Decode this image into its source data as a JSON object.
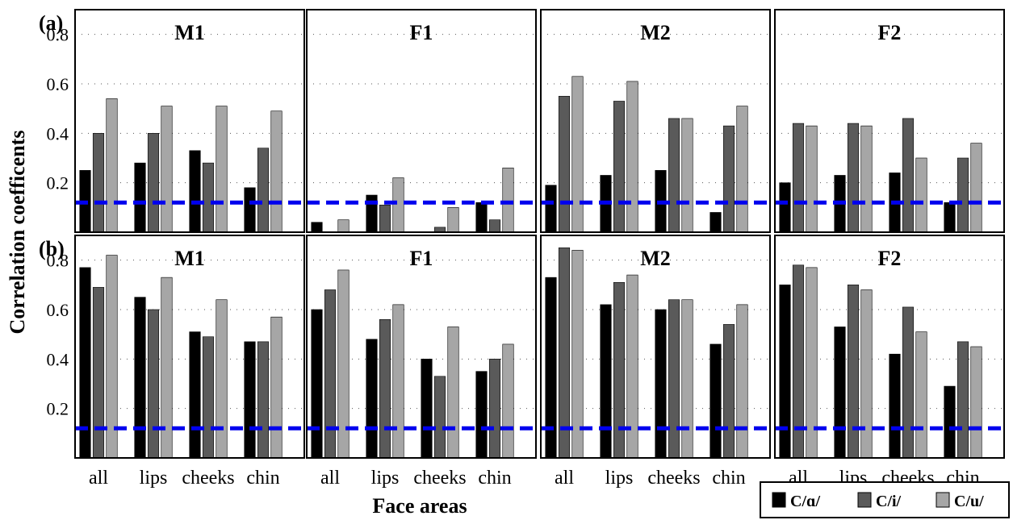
{
  "figure": {
    "ylabel": "Correlation coefficents",
    "xlabel": "Face areas"
  },
  "legend": {
    "items": [
      {
        "label": "C/ɑ/",
        "color": "#000000"
      },
      {
        "label": "C/i/",
        "color": "#5a5a5a"
      },
      {
        "label": "C/u/",
        "color": "#a6a6a6"
      }
    ]
  },
  "chart_data": [
    {
      "type": "bar",
      "row_label": "(a)",
      "title": "M1",
      "categories": [
        "all",
        "lips",
        "cheeks",
        "chin"
      ],
      "ylim": [
        0,
        0.9
      ],
      "yticks": [
        0.2,
        0.4,
        0.6,
        0.8
      ],
      "threshold": 0.12,
      "series": [
        {
          "name": "C/ɑ/",
          "values": [
            0.25,
            0.28,
            0.33,
            0.18
          ]
        },
        {
          "name": "C/i/",
          "values": [
            0.4,
            0.4,
            0.28,
            0.34
          ]
        },
        {
          "name": "C/u/",
          "values": [
            0.54,
            0.51,
            0.51,
            0.49
          ]
        }
      ]
    },
    {
      "type": "bar",
      "title": "F1",
      "categories": [
        "all",
        "lips",
        "cheeks",
        "chin"
      ],
      "ylim": [
        0,
        0.9
      ],
      "threshold": 0.12,
      "series": [
        {
          "name": "C/ɑ/",
          "values": [
            0.04,
            0.15,
            0.0,
            0.12
          ]
        },
        {
          "name": "C/i/",
          "values": [
            0.0,
            0.11,
            0.02,
            0.05
          ]
        },
        {
          "name": "C/u/",
          "values": [
            0.05,
            0.22,
            0.1,
            0.26
          ]
        }
      ]
    },
    {
      "type": "bar",
      "title": "M2",
      "categories": [
        "all",
        "lips",
        "cheeks",
        "chin"
      ],
      "ylim": [
        0,
        0.9
      ],
      "threshold": 0.12,
      "series": [
        {
          "name": "C/ɑ/",
          "values": [
            0.19,
            0.23,
            0.25,
            0.08
          ]
        },
        {
          "name": "C/i/",
          "values": [
            0.55,
            0.53,
            0.46,
            0.43
          ]
        },
        {
          "name": "C/u/",
          "values": [
            0.63,
            0.61,
            0.46,
            0.51
          ]
        }
      ]
    },
    {
      "type": "bar",
      "title": "F2",
      "categories": [
        "all",
        "lips",
        "cheeks",
        "chin"
      ],
      "ylim": [
        0,
        0.9
      ],
      "threshold": 0.12,
      "series": [
        {
          "name": "C/ɑ/",
          "values": [
            0.2,
            0.23,
            0.24,
            0.12
          ]
        },
        {
          "name": "C/i/",
          "values": [
            0.44,
            0.44,
            0.46,
            0.3
          ]
        },
        {
          "name": "C/u/",
          "values": [
            0.43,
            0.43,
            0.3,
            0.36
          ]
        }
      ]
    },
    {
      "type": "bar",
      "row_label": "(b)",
      "title": "M1",
      "categories": [
        "all",
        "lips",
        "cheeks",
        "chin"
      ],
      "ylim": [
        0,
        0.9
      ],
      "yticks": [
        0.2,
        0.4,
        0.6,
        0.8
      ],
      "threshold": 0.12,
      "series": [
        {
          "name": "C/ɑ/",
          "values": [
            0.77,
            0.65,
            0.51,
            0.47
          ]
        },
        {
          "name": "C/i/",
          "values": [
            0.69,
            0.6,
            0.49,
            0.47
          ]
        },
        {
          "name": "C/u/",
          "values": [
            0.82,
            0.73,
            0.64,
            0.57
          ]
        }
      ]
    },
    {
      "type": "bar",
      "title": "F1",
      "categories": [
        "all",
        "lips",
        "cheeks",
        "chin"
      ],
      "ylim": [
        0,
        0.9
      ],
      "threshold": 0.12,
      "series": [
        {
          "name": "C/ɑ/",
          "values": [
            0.6,
            0.48,
            0.4,
            0.35
          ]
        },
        {
          "name": "C/i/",
          "values": [
            0.68,
            0.56,
            0.33,
            0.4
          ]
        },
        {
          "name": "C/u/",
          "values": [
            0.76,
            0.62,
            0.53,
            0.46
          ]
        }
      ]
    },
    {
      "type": "bar",
      "title": "M2",
      "categories": [
        "all",
        "lips",
        "cheeks",
        "chin"
      ],
      "ylim": [
        0,
        0.9
      ],
      "threshold": 0.12,
      "series": [
        {
          "name": "C/ɑ/",
          "values": [
            0.73,
            0.62,
            0.6,
            0.46
          ]
        },
        {
          "name": "C/i/",
          "values": [
            0.85,
            0.71,
            0.64,
            0.54
          ]
        },
        {
          "name": "C/u/",
          "values": [
            0.84,
            0.74,
            0.64,
            0.62
          ]
        }
      ]
    },
    {
      "type": "bar",
      "title": "F2",
      "categories": [
        "all",
        "lips",
        "cheeks",
        "chin"
      ],
      "ylim": [
        0,
        0.9
      ],
      "threshold": 0.12,
      "series": [
        {
          "name": "C/ɑ/",
          "values": [
            0.7,
            0.53,
            0.42,
            0.29
          ]
        },
        {
          "name": "C/i/",
          "values": [
            0.78,
            0.7,
            0.61,
            0.47
          ]
        },
        {
          "name": "C/u/",
          "values": [
            0.77,
            0.68,
            0.51,
            0.45
          ]
        }
      ]
    }
  ]
}
